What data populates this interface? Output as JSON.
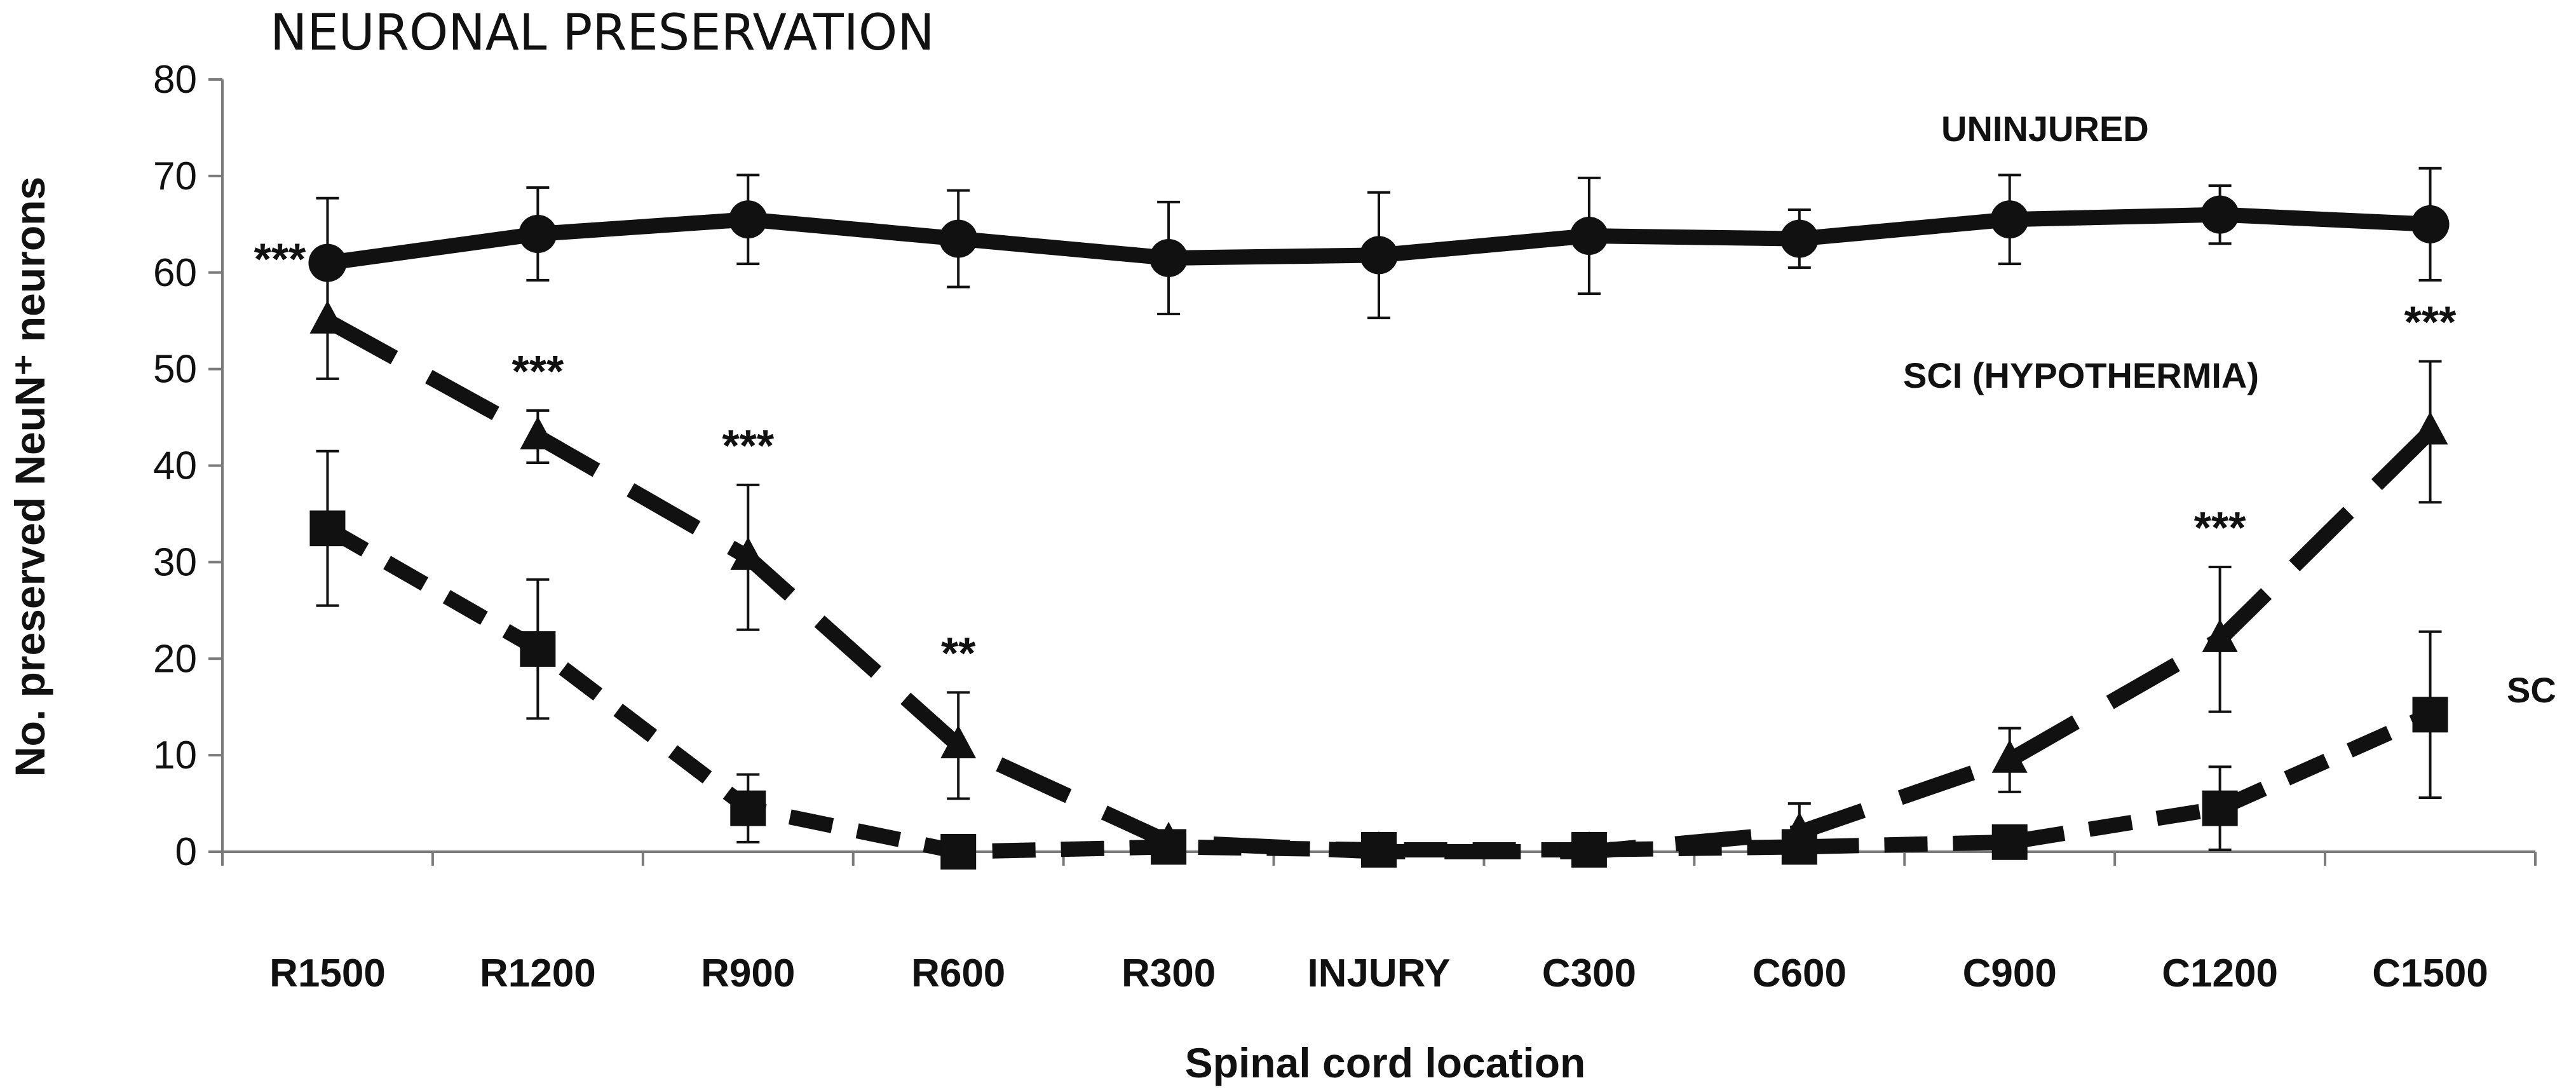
{
  "chart_data": {
    "type": "line",
    "title": "NEURONAL PRESERVATION",
    "xlabel": "Spinal cord location",
    "ylabel": "No. preserved NeuN⁺ neurons",
    "ylim": [
      0,
      80
    ],
    "yticks": [
      0,
      10,
      20,
      30,
      40,
      50,
      60,
      70,
      80
    ],
    "categories": [
      "R1500",
      "R1200",
      "R900",
      "R600",
      "R300",
      "INJURY",
      "C300",
      "C600",
      "C900",
      "C1200",
      "C1500"
    ],
    "series": [
      {
        "name": "UNINJURED",
        "line_style": "solid",
        "marker": "circle",
        "values": [
          61,
          64,
          65.5,
          63.5,
          61.5,
          61.8,
          63.8,
          63.5,
          65.5,
          66,
          65
        ],
        "errors": [
          6.7,
          4.8,
          4.6,
          5,
          5.8,
          6.5,
          6,
          3,
          4.6,
          3,
          5.8
        ]
      },
      {
        "name": "SCI (HYPOTHERMIA)",
        "line_style": "long-dash",
        "marker": "triangle",
        "values": [
          55,
          43,
          30.5,
          11,
          1,
          0,
          0,
          2,
          9.5,
          22,
          43.5
        ],
        "errors": [
          6,
          2.7,
          7.5,
          5.5,
          0,
          0,
          0,
          3,
          3.3,
          7.5,
          7.3
        ]
      },
      {
        "name": "SC",
        "line_style": "short-dash",
        "marker": "square",
        "values": [
          33.5,
          21,
          4.5,
          0,
          0.5,
          0.2,
          0.2,
          0.5,
          1,
          4.5,
          14.2
        ],
        "errors": [
          8,
          7.2,
          3.5,
          0,
          0,
          0,
          0,
          0,
          0,
          4.3,
          8.6
        ]
      }
    ],
    "annotations": [
      {
        "category": "R1500",
        "text": "***"
      },
      {
        "category": "R1200",
        "text": "***"
      },
      {
        "category": "R900",
        "text": "***"
      },
      {
        "category": "R600",
        "text": "**"
      },
      {
        "category": "C1200",
        "text": "***"
      },
      {
        "category": "C1500",
        "text": "***"
      }
    ],
    "grid": false
  }
}
